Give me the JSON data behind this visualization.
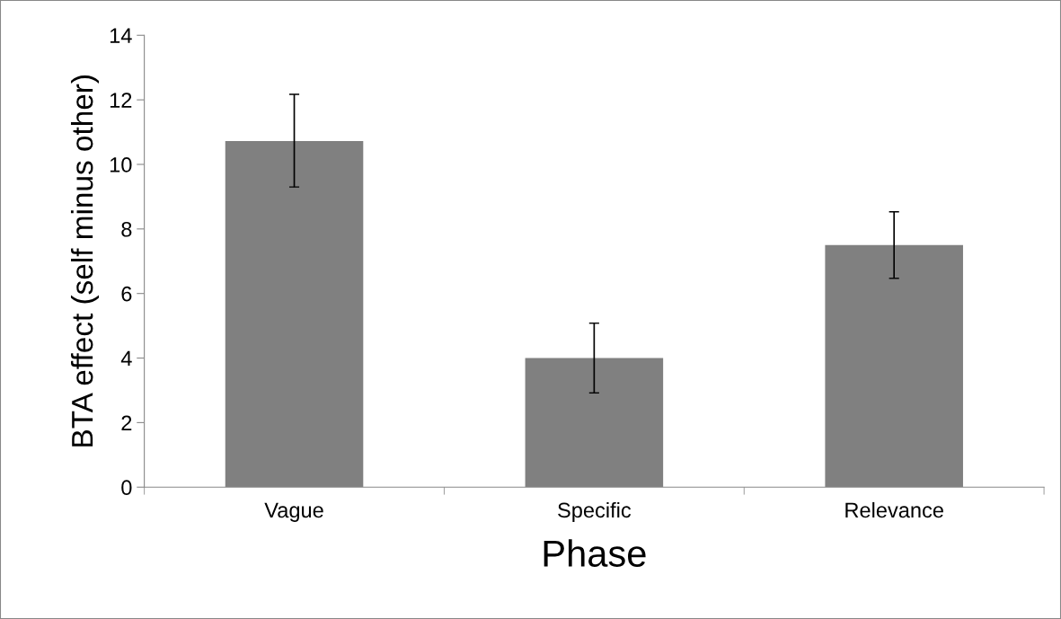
{
  "chart_data": {
    "type": "bar",
    "xlabel": "Phase",
    "ylabel": "BTA effect (self minus other)",
    "categories": [
      "Vague",
      "Specific",
      "Relevance"
    ],
    "series": [
      {
        "color": "#808080",
        "values": [
          10.72,
          4.0,
          7.5
        ],
        "errors": [
          [
            9.3,
            12.17
          ],
          [
            2.92,
            5.08
          ],
          [
            6.47,
            8.53
          ]
        ]
      }
    ],
    "ylim": [
      0,
      14
    ],
    "yticks": [
      0,
      2,
      4,
      6,
      8,
      10,
      12,
      14
    ],
    "grid": false,
    "legend": false
  }
}
